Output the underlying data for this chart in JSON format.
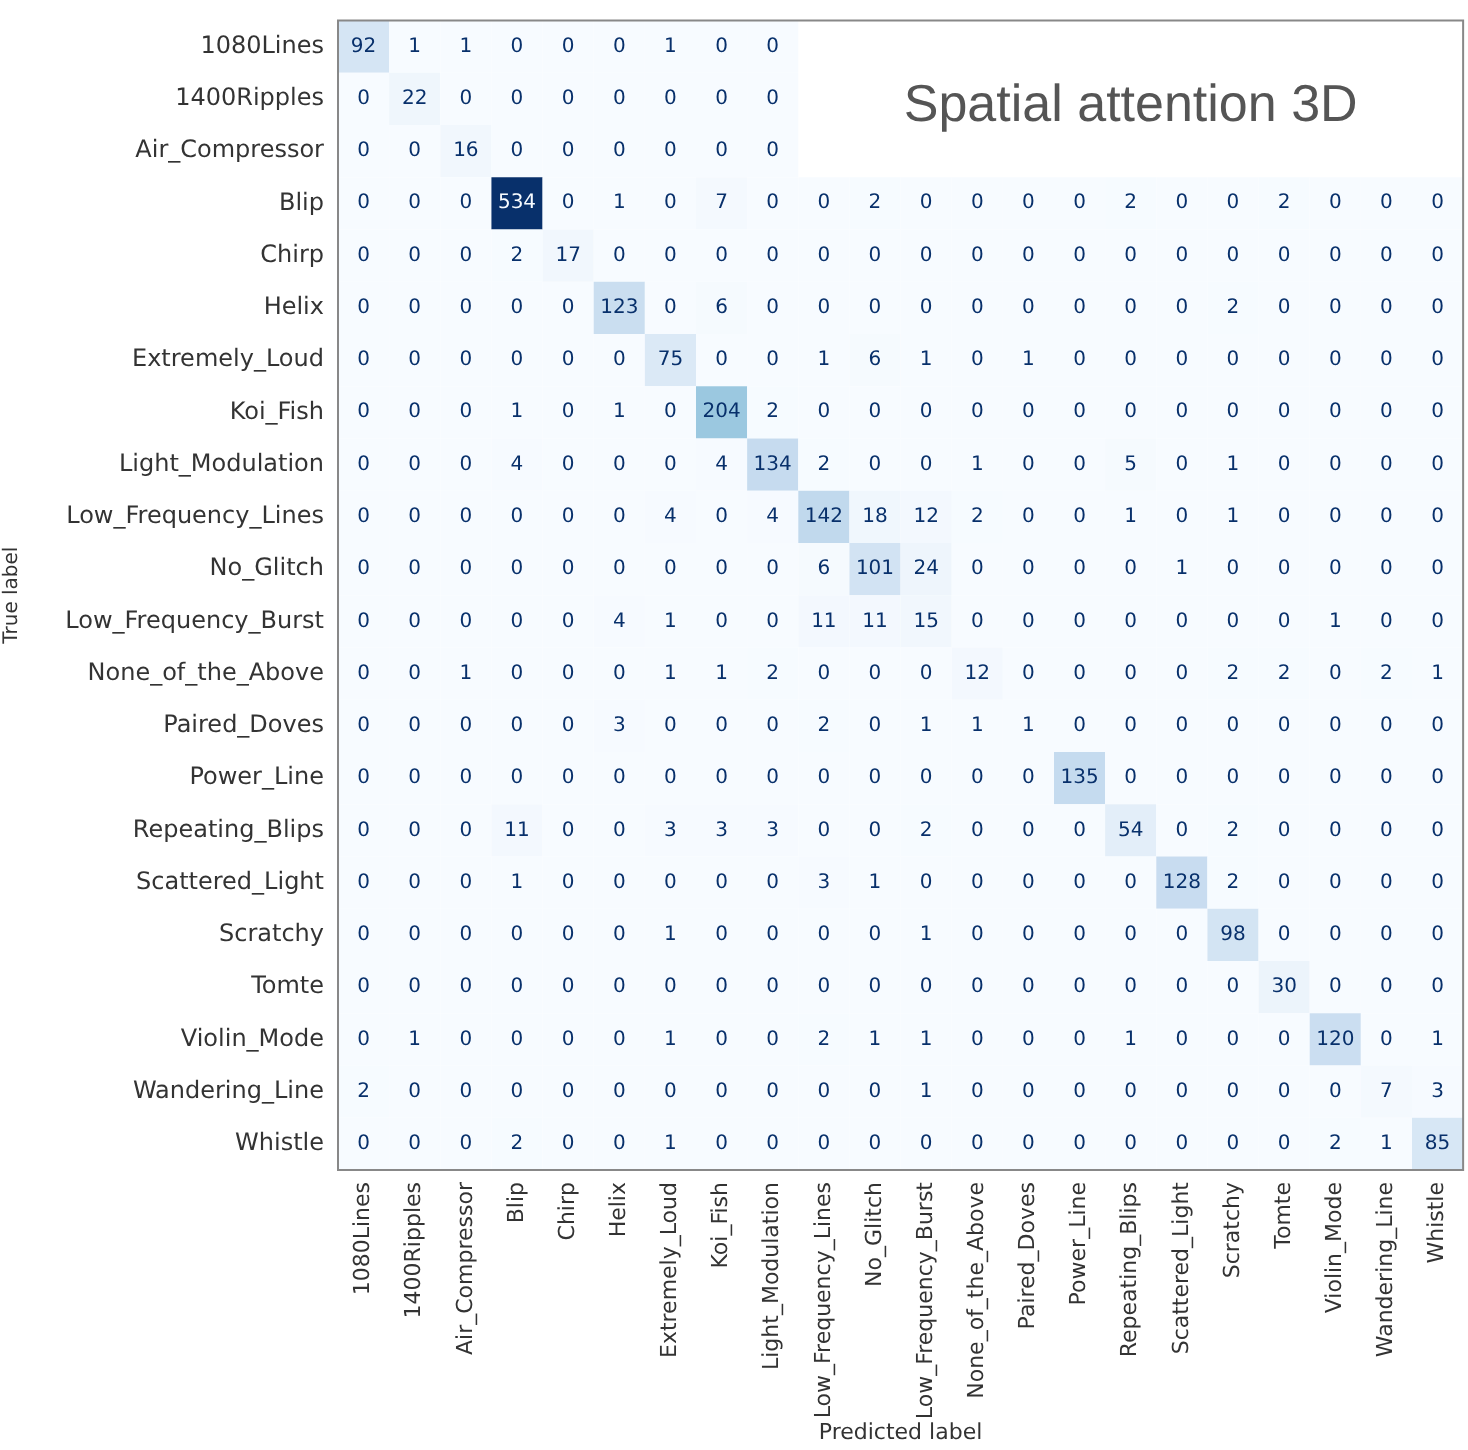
{
  "chart_data": {
    "type": "heatmap",
    "title": "Spatial attention 3D",
    "xlabel": "Predicted label",
    "ylabel": "True label",
    "data_labels": true,
    "categories": [
      "1080Lines",
      "1400Ripples",
      "Air_Compressor",
      "Blip",
      "Chirp",
      "Helix",
      "Extremely_Loud",
      "Koi_Fish",
      "Light_Modulation",
      "Low_Frequency_Lines",
      "No_Glitch",
      "Low_Frequency_Burst",
      "None_of_the_Above",
      "Paired_Doves",
      "Power_Line",
      "Repeating_Blips",
      "Scattered_Light",
      "Scratchy",
      "Tomte",
      "Violin_Mode",
      "Wandering_Line",
      "Whistle"
    ],
    "y_categories": [
      "1080Lines",
      "1400Ripples",
      "Air_Compressor",
      "Blip",
      "Chirp",
      "Helix",
      "Extremely_Loud",
      "Koi_Fish",
      "Light_Modulation",
      "Low_Frequency_Lines",
      "No_Glitch",
      "Low_Frequency_Burst",
      "None_of_the_Above",
      "Paired_Doves",
      "Power_Line",
      "Repeating_Blips",
      "Scattered_Light",
      "Scratchy",
      "Tomte",
      "Violin_Mode",
      "Wandering_Line",
      "Whistle"
    ],
    "cells": [
      [
        92,
        1,
        1,
        0,
        0,
        0,
        1,
        0,
        0,
        null,
        null,
        null,
        null,
        null,
        null,
        null,
        null,
        null,
        null,
        null,
        null,
        null
      ],
      [
        0,
        22,
        0,
        0,
        0,
        0,
        0,
        0,
        0,
        null,
        null,
        null,
        null,
        null,
        null,
        null,
        null,
        null,
        null,
        null,
        null,
        null
      ],
      [
        0,
        0,
        16,
        0,
        0,
        0,
        0,
        0,
        0,
        null,
        null,
        null,
        null,
        null,
        null,
        null,
        null,
        null,
        null,
        null,
        null,
        null
      ],
      [
        0,
        0,
        0,
        534,
        0,
        1,
        0,
        7,
        0,
        0,
        2,
        0,
        0,
        0,
        0,
        2,
        0,
        0,
        2,
        0,
        0,
        0
      ],
      [
        0,
        0,
        0,
        2,
        17,
        0,
        0,
        0,
        0,
        0,
        0,
        0,
        0,
        0,
        0,
        0,
        0,
        0,
        0,
        0,
        0,
        0
      ],
      [
        0,
        0,
        0,
        0,
        0,
        123,
        0,
        6,
        0,
        0,
        0,
        0,
        0,
        0,
        0,
        0,
        0,
        2,
        0,
        0,
        0,
        0
      ],
      [
        0,
        0,
        0,
        0,
        0,
        0,
        75,
        0,
        0,
        1,
        6,
        1,
        0,
        1,
        0,
        0,
        0,
        0,
        0,
        0,
        0,
        0
      ],
      [
        0,
        0,
        0,
        1,
        0,
        1,
        0,
        204,
        2,
        0,
        0,
        0,
        0,
        0,
        0,
        0,
        0,
        0,
        0,
        0,
        0,
        0
      ],
      [
        0,
        0,
        0,
        4,
        0,
        0,
        0,
        4,
        134,
        2,
        0,
        0,
        1,
        0,
        0,
        5,
        0,
        1,
        0,
        0,
        0,
        0
      ],
      [
        0,
        0,
        0,
        0,
        0,
        0,
        4,
        0,
        4,
        142,
        18,
        12,
        2,
        0,
        0,
        1,
        0,
        1,
        0,
        0,
        0,
        0
      ],
      [
        0,
        0,
        0,
        0,
        0,
        0,
        0,
        0,
        0,
        6,
        101,
        24,
        0,
        0,
        0,
        0,
        1,
        0,
        0,
        0,
        0,
        0
      ],
      [
        0,
        0,
        0,
        0,
        0,
        4,
        1,
        0,
        0,
        11,
        11,
        15,
        0,
        0,
        0,
        0,
        0,
        0,
        0,
        1,
        0,
        0
      ],
      [
        0,
        0,
        1,
        0,
        0,
        0,
        1,
        1,
        2,
        0,
        0,
        0,
        12,
        0,
        0,
        0,
        0,
        2,
        2,
        0,
        2,
        1
      ],
      [
        0,
        0,
        0,
        0,
        0,
        3,
        0,
        0,
        0,
        2,
        0,
        1,
        1,
        1,
        0,
        0,
        0,
        0,
        0,
        0,
        0,
        0
      ],
      [
        0,
        0,
        0,
        0,
        0,
        0,
        0,
        0,
        0,
        0,
        0,
        0,
        0,
        0,
        135,
        0,
        0,
        0,
        0,
        0,
        0,
        0
      ],
      [
        0,
        0,
        0,
        11,
        0,
        0,
        3,
        3,
        3,
        0,
        0,
        2,
        0,
        0,
        0,
        54,
        0,
        2,
        0,
        0,
        0,
        0
      ],
      [
        0,
        0,
        0,
        1,
        0,
        0,
        0,
        0,
        0,
        3,
        1,
        0,
        0,
        0,
        0,
        0,
        128,
        2,
        0,
        0,
        0,
        0
      ],
      [
        0,
        0,
        0,
        0,
        0,
        0,
        1,
        0,
        0,
        0,
        0,
        1,
        0,
        0,
        0,
        0,
        0,
        98,
        0,
        0,
        0,
        0
      ],
      [
        0,
        0,
        0,
        0,
        0,
        0,
        0,
        0,
        0,
        0,
        0,
        0,
        0,
        0,
        0,
        0,
        0,
        0,
        30,
        0,
        0,
        0
      ],
      [
        0,
        1,
        0,
        0,
        0,
        0,
        1,
        0,
        0,
        2,
        1,
        1,
        0,
        0,
        0,
        1,
        0,
        0,
        0,
        120,
        0,
        1
      ],
      [
        2,
        0,
        0,
        0,
        0,
        0,
        0,
        0,
        0,
        0,
        0,
        1,
        0,
        0,
        0,
        0,
        0,
        0,
        0,
        0,
        7,
        3
      ],
      [
        0,
        0,
        0,
        2,
        0,
        0,
        1,
        0,
        0,
        0,
        0,
        0,
        0,
        0,
        0,
        0,
        0,
        0,
        0,
        2,
        1,
        85
      ]
    ]
  }
}
